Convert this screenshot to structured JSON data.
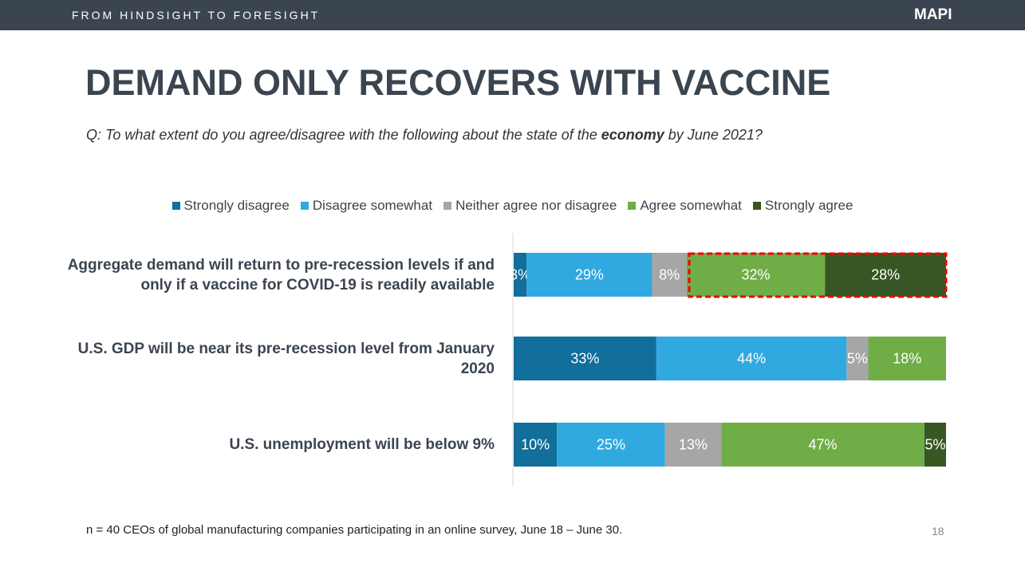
{
  "header": {
    "tagline": "FROM HINDSIGHT TO FORESIGHT",
    "logo": "MAPI"
  },
  "subtitle_parts": [
    "Q: To what extent do you agree/disagree with the following about the state of the ",
    "economy",
    " by June 2021?"
  ],
  "footnote": "n = 40 CEOs of global manufacturing companies participating in an online survey, June 18 – June 30.",
  "page_number": "18",
  "chart_data": {
    "type": "stacked-bar-horizontal",
    "title": "DEMAND ONLY RECOVERS WITH VACCINE",
    "categories": [
      "Aggregate demand will return to pre-recession levels if and only if a vaccine for COVID-19 is readily available",
      "U.S. GDP will be near its pre-recession level from January 2020",
      "U.S. unemployment will be below 9%"
    ],
    "xlim": [
      0,
      100
    ],
    "series": [
      {
        "name": "Strongly disagree",
        "color": "#126e9a",
        "values": [
          3,
          33,
          10
        ],
        "value_labels": [
          "3%",
          "33%",
          "10%"
        ]
      },
      {
        "name": "Disagree somewhat",
        "color": "#2fa9e0",
        "values": [
          29,
          44,
          25
        ],
        "value_labels": [
          "29%",
          "44%",
          "25%"
        ]
      },
      {
        "name": "Neither agree nor disagree",
        "color": "#a6a6a6",
        "values": [
          8,
          5,
          13
        ],
        "value_labels": [
          "8%",
          "5%",
          "13%"
        ]
      },
      {
        "name": "Agree somewhat",
        "color": "#70ad47",
        "values": [
          32,
          18,
          47
        ],
        "value_labels": [
          "32%",
          "18%",
          "47%"
        ]
      },
      {
        "name": "Strongly agree",
        "color": "#375623",
        "values": [
          28,
          0,
          5
        ],
        "value_labels": [
          "28%",
          null,
          "5%"
        ]
      }
    ],
    "legend": "top"
  }
}
